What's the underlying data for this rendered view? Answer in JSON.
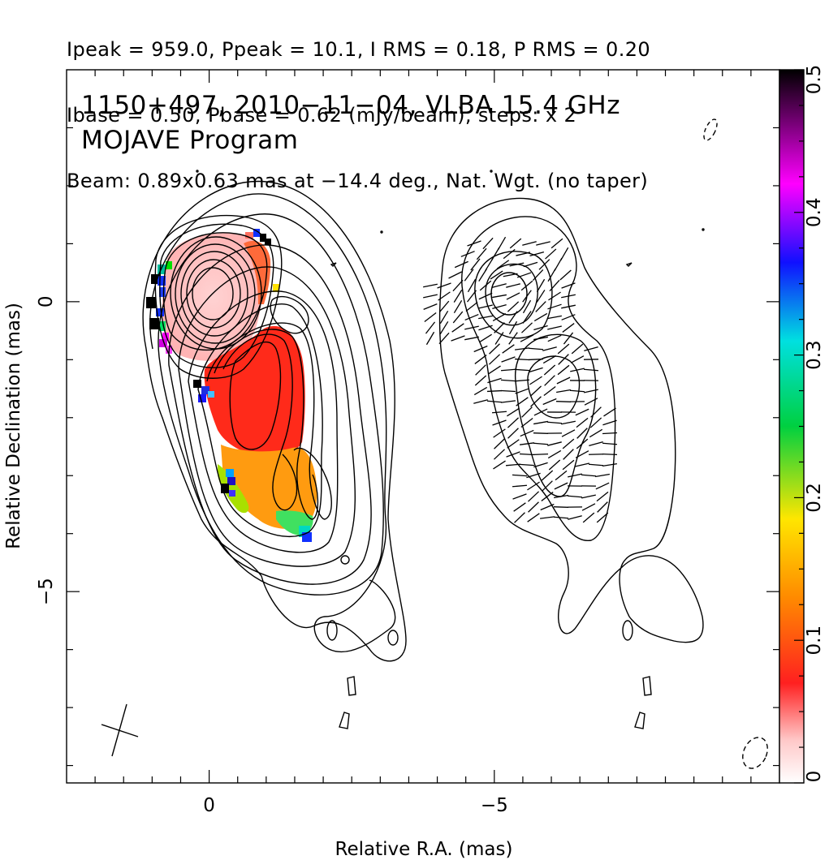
{
  "header": {
    "line1": "Ipeak = 959.0, Ppeak = 10.1, I RMS = 0.18, P RMS = 0.20",
    "line2": "Ibase = 0.50, Pbase = 0.62 (mJy/beam), steps: x 2",
    "line3": "Beam: 0.89x0.63 mas at −14.4 deg., Nat. Wgt. (no taper)"
  },
  "chart_data": {
    "type": "heatmap",
    "title": "1150+497, 2010−11−04, VLBA 15.4 GHz",
    "subtitle": "MOJAVE Program",
    "xlabel": "Relative R.A. (mas)",
    "ylabel": "Relative Declination (mas)",
    "x_ticks": [
      {
        "value": 0,
        "label": "0"
      },
      {
        "value": -5,
        "label": "−5"
      }
    ],
    "y_ticks": [
      {
        "value": 0,
        "label": "0"
      },
      {
        "value": -5,
        "label": "−5"
      }
    ],
    "xlim": [
      2.5,
      -10.0
    ],
    "ylim": [
      -8.3,
      4.0
    ],
    "colorbar": {
      "range": [
        0,
        0.5
      ],
      "ticks": [
        {
          "value": 0,
          "label": "0"
        },
        {
          "value": 0.1,
          "label": "0.1"
        },
        {
          "value": 0.2,
          "label": "0.2"
        },
        {
          "value": 0.3,
          "label": "0.3"
        },
        {
          "value": 0.4,
          "label": "0.4"
        },
        {
          "value": 0.5,
          "label": "0.5"
        }
      ],
      "colormap": [
        "#ffffff",
        "#ff2020",
        "#ff8a00",
        "#ffe600",
        "#00d040",
        "#00e0e0",
        "#1010ff",
        "#ff00ff",
        "#000000"
      ]
    },
    "panels": [
      {
        "name": "fractional-polarization-map",
        "ra_offset": 0,
        "fpol_peak_region": 0.02
      },
      {
        "name": "polarization-vectors-map",
        "ra_offset": -5.0
      }
    ],
    "beam": {
      "major_mas": 0.89,
      "minor_mas": 0.63,
      "pa_deg": -14.4
    }
  }
}
